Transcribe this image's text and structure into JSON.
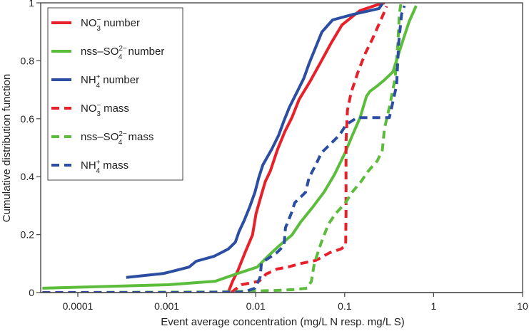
{
  "chart_data": {
    "type": "line",
    "title": "",
    "xlabel": "Event average concentration (mg/L N resp. mg/L S)",
    "ylabel": "Cumulative distribution function",
    "xscale": "log",
    "xlim": [
      4e-05,
      10
    ],
    "ylim": [
      0,
      1
    ],
    "xticks": [
      0.0001,
      0.001,
      0.01,
      0.1,
      1,
      10
    ],
    "xtick_labels": [
      "0.0001",
      "0.001",
      "0.01",
      "0.1",
      "1",
      "10"
    ],
    "yticks": [
      0,
      0.2,
      0.4,
      0.6,
      0.8,
      1
    ],
    "ytick_labels": [
      "0",
      "0.2",
      "0.4",
      "0.6",
      "0.8",
      "1"
    ],
    "grid": false,
    "legend_position": "top-left",
    "series": [
      {
        "name": "NO3- number",
        "legend": {
          "base": "NO",
          "sub": "3",
          "sup": "−",
          "suffix": " number"
        },
        "color": "#e8202a",
        "style": "solid",
        "x": [
          0.0049,
          0.0055,
          0.0063,
          0.0076,
          0.0092,
          0.0101,
          0.0115,
          0.0128,
          0.0146,
          0.0176,
          0.0212,
          0.0255,
          0.0307,
          0.0405,
          0.0535,
          0.0707,
          0.0934,
          0.148,
          0.243,
          0.282
        ],
        "y": [
          0.0,
          0.039,
          0.076,
          0.138,
          0.199,
          0.273,
          0.334,
          0.383,
          0.42,
          0.494,
          0.555,
          0.604,
          0.666,
          0.727,
          0.794,
          0.862,
          0.924,
          0.973,
          0.995,
          1.0
        ]
      },
      {
        "name": "nss-SO42- number",
        "legend": {
          "base": "nss–SO",
          "sub": "4",
          "sup": "2−",
          "suffix": " number"
        },
        "color": "#5cbd3c",
        "style": "solid",
        "x": [
          4e-05,
          0.00104,
          0.0035,
          0.006,
          0.0104,
          0.0137,
          0.0184,
          0.0256,
          0.0319,
          0.0443,
          0.0584,
          0.0771,
          0.101,
          0.122,
          0.149,
          0.176,
          0.193,
          0.232,
          0.278,
          0.349,
          0.443,
          0.532,
          0.637
        ],
        "y": [
          0.015,
          0.027,
          0.039,
          0.064,
          0.088,
          0.125,
          0.162,
          0.199,
          0.243,
          0.297,
          0.346,
          0.408,
          0.482,
          0.543,
          0.604,
          0.678,
          0.695,
          0.713,
          0.733,
          0.762,
          0.862,
          0.936,
          0.99
        ]
      },
      {
        "name": "NH4+ number",
        "legend": {
          "base": "NH",
          "sub": "4",
          "sup": "+",
          "suffix": " number"
        },
        "color": "#2b4ea2",
        "style": "solid",
        "x": [
          0.00035,
          0.00093,
          0.00178,
          0.00214,
          0.00339,
          0.00491,
          0.00591,
          0.0065,
          0.0074,
          0.0086,
          0.0098,
          0.0108,
          0.012,
          0.0151,
          0.0181,
          0.0207,
          0.024,
          0.0289,
          0.0348,
          0.0396,
          0.046,
          0.0554,
          0.0732,
          0.127,
          0.243,
          0.267
        ],
        "y": [
          0.052,
          0.066,
          0.088,
          0.108,
          0.125,
          0.15,
          0.174,
          0.211,
          0.248,
          0.297,
          0.346,
          0.396,
          0.44,
          0.494,
          0.543,
          0.592,
          0.641,
          0.69,
          0.74,
          0.789,
          0.838,
          0.899,
          0.941,
          0.961,
          0.98,
          0.998
        ]
      },
      {
        "name": "NO3- mass",
        "legend": {
          "base": "NO",
          "sub": "3",
          "sup": "−",
          "suffix": " mass"
        },
        "color": "#e8202a",
        "style": "dashed",
        "x": [
          0.0053,
          0.0069,
          0.0109,
          0.0131,
          0.0173,
          0.0228,
          0.0329,
          0.0475,
          0.0685,
          0.0903,
          0.1027,
          0.1035,
          0.1035,
          0.1035,
          0.1075,
          0.118,
          0.142,
          0.171,
          0.205,
          0.27,
          0.296
        ],
        "y": [
          0.0,
          0.027,
          0.039,
          0.064,
          0.081,
          0.088,
          0.101,
          0.111,
          0.138,
          0.15,
          0.162,
          0.273,
          0.396,
          0.519,
          0.629,
          0.69,
          0.764,
          0.826,
          0.875,
          0.958,
          0.988
        ]
      },
      {
        "name": "nss-SO42- mass",
        "legend": {
          "base": "nss–SO",
          "sub": "4",
          "sup": "2−",
          "suffix": " mass"
        },
        "color": "#5cbd3c",
        "style": "dashed",
        "x": [
          4e-05,
          0.0035,
          0.0087,
          0.0151,
          0.0263,
          0.0379,
          0.0423,
          0.0456,
          0.0547,
          0.0657,
          0.0791,
          0.1007,
          0.1209,
          0.1526,
          0.1836,
          0.2332,
          0.2647,
          0.28,
          0.318,
          0.369,
          0.397,
          0.412,
          0.427
        ],
        "y": [
          0.0,
          0.002,
          0.005,
          0.007,
          0.01,
          0.015,
          0.039,
          0.101,
          0.174,
          0.236,
          0.273,
          0.307,
          0.346,
          0.383,
          0.419,
          0.455,
          0.491,
          0.565,
          0.639,
          0.74,
          0.862,
          0.961,
          0.995
        ]
      },
      {
        "name": "NH4+ mass",
        "legend": {
          "base": "NH",
          "sub": "4",
          "sup": "+",
          "suffix": " mass"
        },
        "color": "#2b4ea2",
        "style": "dashed",
        "x": [
          4e-05,
          0.0015,
          0.0074,
          0.0098,
          0.0112,
          0.0116,
          0.0131,
          0.0173,
          0.0208,
          0.0216,
          0.0251,
          0.0275,
          0.0363,
          0.0398,
          0.048,
          0.0547,
          0.087,
          0.1046,
          0.138,
          0.318,
          0.383,
          0.405,
          0.436,
          0.47
        ],
        "y": [
          0.0,
          0.0,
          0.002,
          0.015,
          0.052,
          0.101,
          0.113,
          0.138,
          0.162,
          0.224,
          0.273,
          0.31,
          0.346,
          0.396,
          0.445,
          0.482,
          0.543,
          0.58,
          0.604,
          0.604,
          0.715,
          0.862,
          0.961,
          0.99
        ]
      }
    ]
  }
}
